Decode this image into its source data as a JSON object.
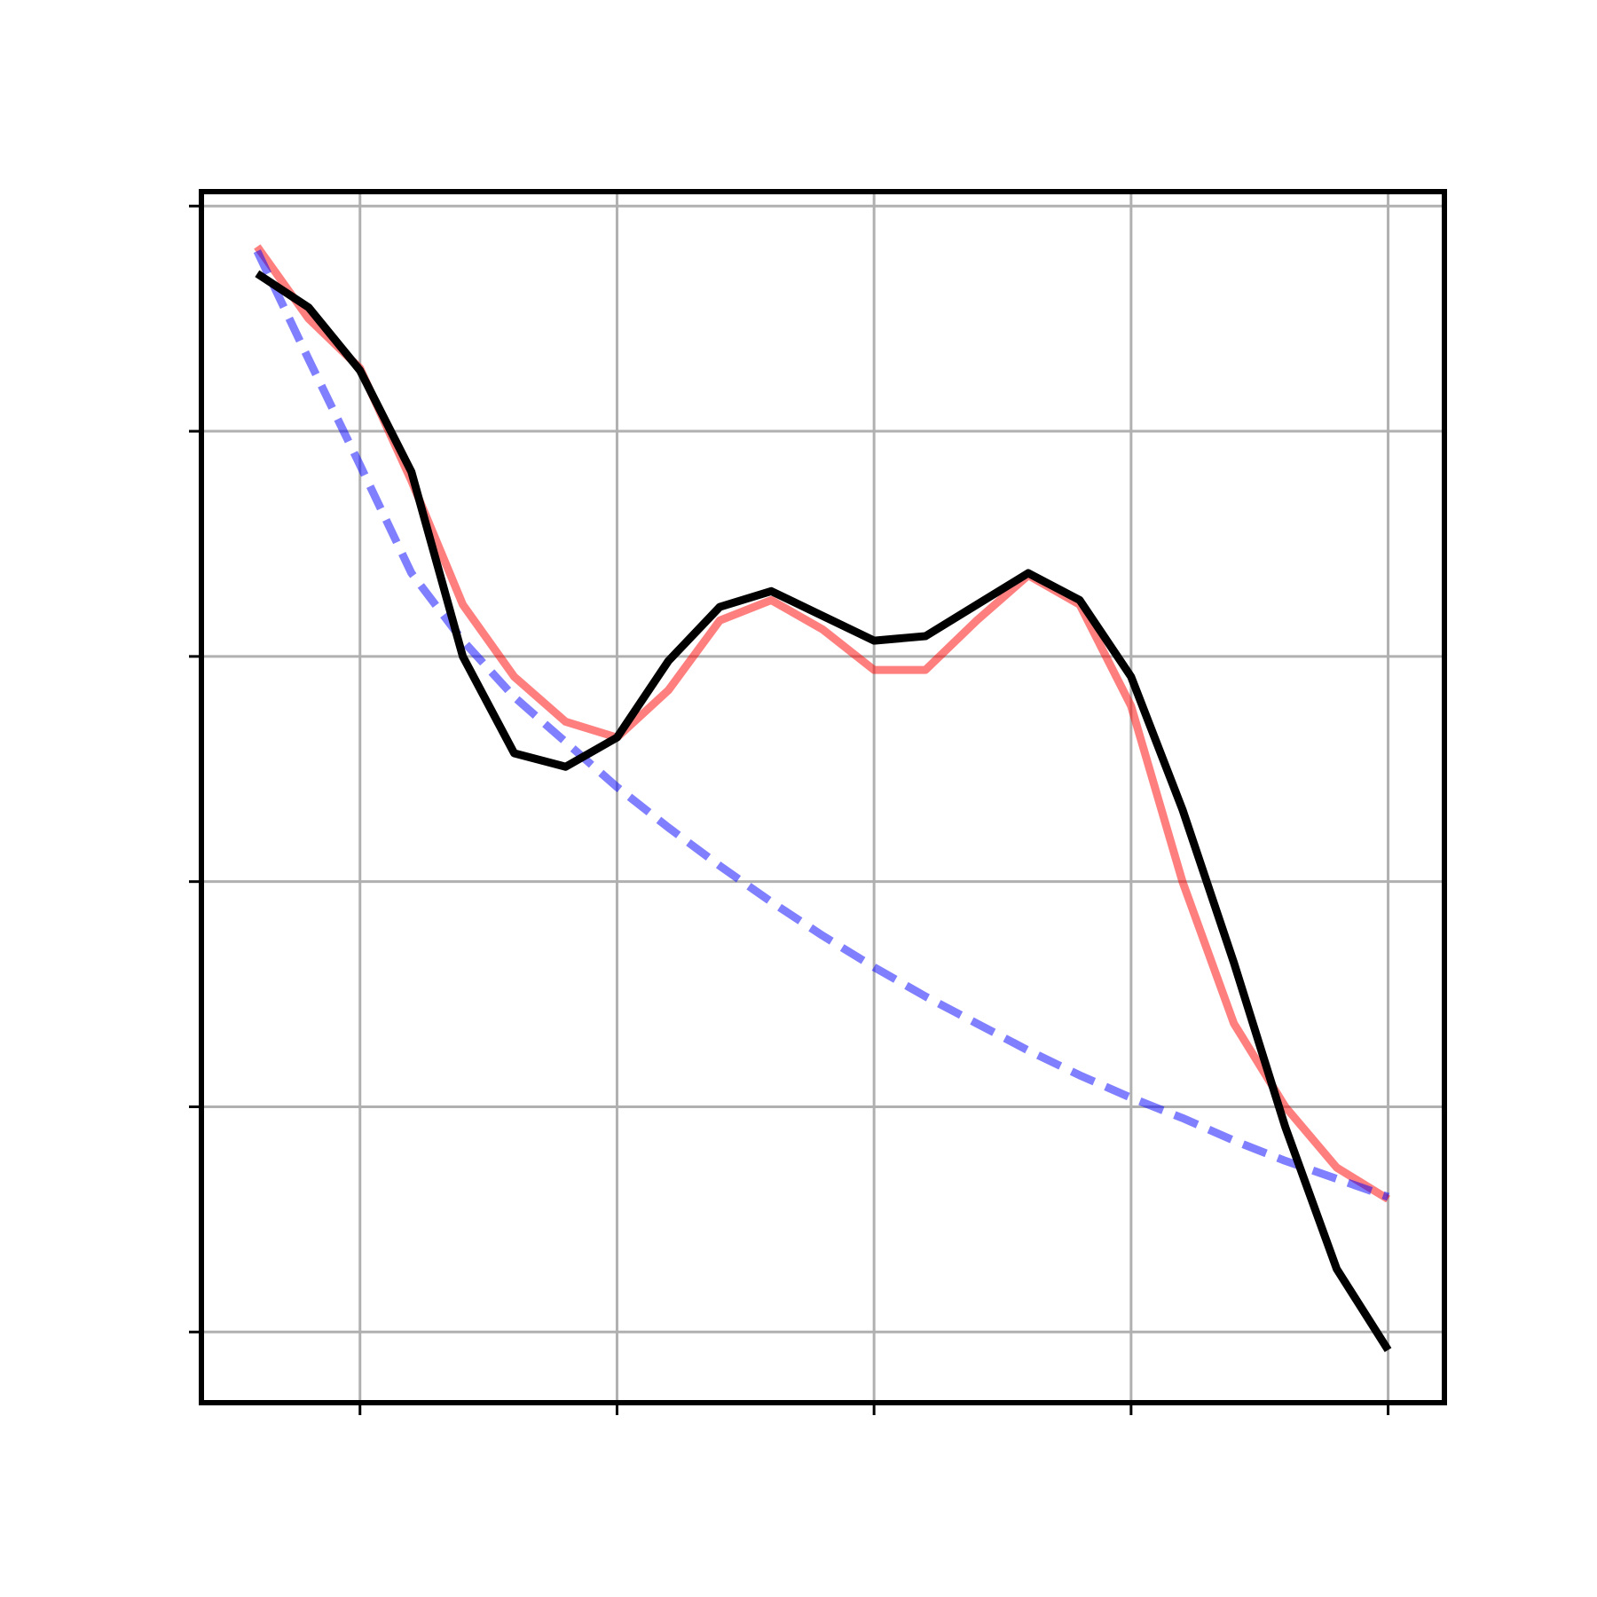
{
  "chart_data": {
    "type": "line",
    "x": [
      0.6,
      0.8,
      1.0,
      1.2,
      1.4,
      1.6,
      1.8,
      2.0,
      2.2,
      2.4,
      2.6,
      2.8,
      3.0,
      3.2,
      3.4,
      3.6,
      3.8,
      4.0,
      4.2,
      4.4,
      4.6,
      4.8,
      5.0
    ],
    "series": [
      {
        "color": "#ff0000",
        "alpha": 0.5,
        "linestyle": "solid",
        "values": [
          4.82,
          4.5,
          4.28,
          3.78,
          3.23,
          2.91,
          2.71,
          2.64,
          2.85,
          3.16,
          3.25,
          3.12,
          2.94,
          2.94,
          3.16,
          3.36,
          3.23,
          2.78,
          2.0,
          1.37,
          1.0,
          0.73,
          0.59
        ]
      },
      {
        "color": "#0000ff",
        "alpha": 0.5,
        "linestyle": "dashed",
        "values": [
          4.8,
          4.32,
          3.85,
          3.37,
          3.07,
          2.82,
          2.62,
          2.42,
          2.24,
          2.07,
          1.91,
          1.76,
          1.62,
          1.49,
          1.37,
          1.25,
          1.14,
          1.04,
          0.95,
          0.85,
          0.76,
          0.68,
          0.6
        ]
      },
      {
        "color": "#000000",
        "alpha": 1,
        "linestyle": "solid",
        "values": [
          4.7,
          4.55,
          4.27,
          3.82,
          3.0,
          2.57,
          2.51,
          2.64,
          2.98,
          3.22,
          3.29,
          3.18,
          3.07,
          3.09,
          3.23,
          3.37,
          3.25,
          2.91,
          2.32,
          1.64,
          0.91,
          0.28,
          -0.08
        ]
      }
    ],
    "xlim": [
      0.383,
      5.219
    ],
    "xticks": [
      1,
      2,
      3,
      4,
      5
    ],
    "ylim": [
      -0.314,
      5.064
    ],
    "yticks": [
      0,
      1,
      2,
      3,
      4,
      5
    ],
    "grid": true
  }
}
